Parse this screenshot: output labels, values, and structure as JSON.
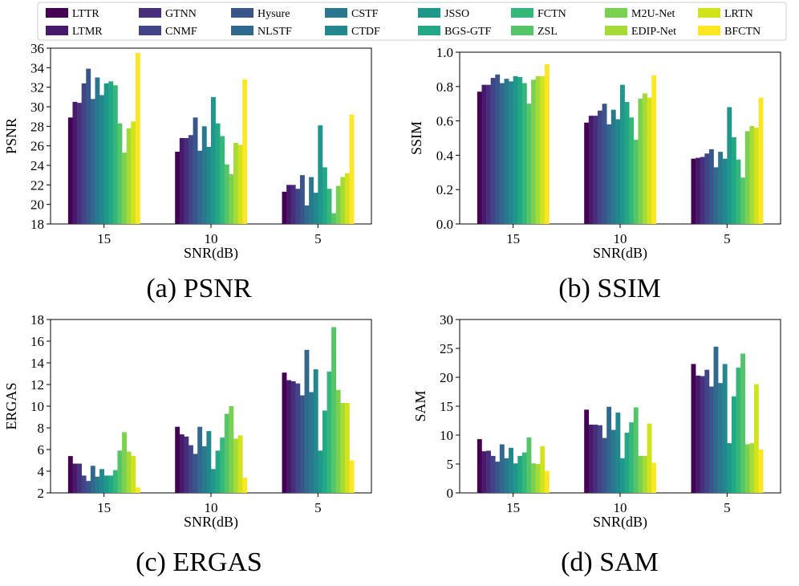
{
  "legend": {
    "entries": [
      "LTTR",
      "LTMR",
      "GTNN",
      "CNMF",
      "Hysure",
      "NLSTF",
      "CSTF",
      "CTDF",
      "JSSO",
      "BGS-GTF",
      "FCTN",
      "ZSL",
      "M2U-Net",
      "EDIP-Net",
      "LRTN",
      "BFCTN"
    ],
    "colors": [
      "#440154",
      "#481a6c",
      "#472f7d",
      "#414487",
      "#39568c",
      "#31688e",
      "#2a788e",
      "#23888e",
      "#1f988b",
      "#22a884",
      "#35b779",
      "#54c568",
      "#7ad151",
      "#a5db36",
      "#d2e21b",
      "#fde725"
    ]
  },
  "chart_data": [
    {
      "type": "bar",
      "caption": "(a) PSNR",
      "xlabel": "SNR(dB)",
      "ylabel": "PSNR",
      "categories": [
        "15",
        "10",
        "5"
      ],
      "ylim": [
        18,
        36
      ],
      "yticks": [
        "18",
        "20",
        "22",
        "24",
        "26",
        "28",
        "30",
        "32",
        "34",
        "36"
      ],
      "series": [
        {
          "name": "LTTR",
          "values": [
            28.9,
            25.4,
            21.3
          ]
        },
        {
          "name": "LTMR",
          "values": [
            30.5,
            26.8,
            22.0
          ]
        },
        {
          "name": "GTNN",
          "values": [
            30.4,
            26.8,
            22.0
          ]
        },
        {
          "name": "CNMF",
          "values": [
            32.4,
            27.1,
            21.6
          ]
        },
        {
          "name": "Hysure",
          "values": [
            33.9,
            28.9,
            23.0
          ]
        },
        {
          "name": "NLSTF",
          "values": [
            30.8,
            25.5,
            19.9
          ]
        },
        {
          "name": "CSTF",
          "values": [
            33.0,
            28.0,
            22.8
          ]
        },
        {
          "name": "CTDF",
          "values": [
            31.2,
            25.9,
            21.2
          ]
        },
        {
          "name": "JSSO",
          "values": [
            32.4,
            31.0,
            28.1
          ]
        },
        {
          "name": "BGS-GTF",
          "values": [
            32.6,
            28.3,
            23.8
          ]
        },
        {
          "name": "FCTN",
          "values": [
            32.2,
            27.0,
            21.6
          ]
        },
        {
          "name": "ZSL",
          "values": [
            28.3,
            24.1,
            19.1
          ]
        },
        {
          "name": "M2U-Net",
          "values": [
            25.3,
            23.1,
            21.9
          ]
        },
        {
          "name": "EDIP-Net",
          "values": [
            27.8,
            26.3,
            22.8
          ]
        },
        {
          "name": "LRTN",
          "values": [
            28.5,
            26.1,
            23.2
          ]
        },
        {
          "name": "BFCTN",
          "values": [
            35.5,
            32.8,
            29.2
          ]
        }
      ]
    },
    {
      "type": "bar",
      "caption": "(b) SSIM",
      "xlabel": "SNR(dB)",
      "ylabel": "SSIM",
      "categories": [
        "15",
        "10",
        "5"
      ],
      "ylim": [
        0,
        1
      ],
      "yticks": [
        "0.0",
        "0.2",
        "0.4",
        "0.6",
        "0.8",
        "1.0"
      ],
      "series": [
        {
          "name": "LTTR",
          "values": [
            0.77,
            0.59,
            0.38
          ]
        },
        {
          "name": "LTMR",
          "values": [
            0.81,
            0.63,
            0.385
          ]
        },
        {
          "name": "GTNN",
          "values": [
            0.81,
            0.63,
            0.39
          ]
        },
        {
          "name": "CNMF",
          "values": [
            0.85,
            0.66,
            0.41
          ]
        },
        {
          "name": "Hysure",
          "values": [
            0.87,
            0.7,
            0.435
          ]
        },
        {
          "name": "NLSTF",
          "values": [
            0.82,
            0.58,
            0.33
          ]
        },
        {
          "name": "CSTF",
          "values": [
            0.845,
            0.665,
            0.42
          ]
        },
        {
          "name": "CTDF",
          "values": [
            0.83,
            0.61,
            0.38
          ]
        },
        {
          "name": "JSSO",
          "values": [
            0.86,
            0.81,
            0.68
          ]
        },
        {
          "name": "BGS-GTF",
          "values": [
            0.855,
            0.71,
            0.505
          ]
        },
        {
          "name": "FCTN",
          "values": [
            0.82,
            0.62,
            0.375
          ]
        },
        {
          "name": "ZSL",
          "values": [
            0.7,
            0.49,
            0.27
          ]
        },
        {
          "name": "M2U-Net",
          "values": [
            0.84,
            0.73,
            0.54
          ]
        },
        {
          "name": "EDIP-Net",
          "values": [
            0.86,
            0.76,
            0.57
          ]
        },
        {
          "name": "LRTN",
          "values": [
            0.86,
            0.735,
            0.56
          ]
        },
        {
          "name": "BFCTN",
          "values": [
            0.93,
            0.865,
            0.735
          ]
        }
      ]
    },
    {
      "type": "bar",
      "caption": "(c) ERGAS",
      "xlabel": "SNR(dB)",
      "ylabel": "ERGAS",
      "categories": [
        "15",
        "10",
        "5"
      ],
      "ylim": [
        2,
        18
      ],
      "yticks": [
        "2",
        "4",
        "6",
        "8",
        "10",
        "12",
        "14",
        "16",
        "18"
      ],
      "series": [
        {
          "name": "LTTR",
          "values": [
            5.4,
            8.1,
            13.1
          ]
        },
        {
          "name": "LTMR",
          "values": [
            4.7,
            7.4,
            12.4
          ]
        },
        {
          "name": "GTNN",
          "values": [
            4.7,
            7.2,
            12.3
          ]
        },
        {
          "name": "CNMF",
          "values": [
            3.6,
            6.4,
            12.1
          ]
        },
        {
          "name": "Hysure",
          "values": [
            3.1,
            5.6,
            11.0
          ]
        },
        {
          "name": "NLSTF",
          "values": [
            4.5,
            8.1,
            15.2
          ]
        },
        {
          "name": "CSTF",
          "values": [
            3.5,
            6.3,
            11.3
          ]
        },
        {
          "name": "CTDF",
          "values": [
            4.2,
            7.7,
            13.4
          ]
        },
        {
          "name": "JSSO",
          "values": [
            3.6,
            4.2,
            5.9
          ]
        },
        {
          "name": "BGS-GTF",
          "values": [
            3.6,
            5.9,
            9.6
          ]
        },
        {
          "name": "FCTN",
          "values": [
            4.1,
            7.1,
            13.2
          ]
        },
        {
          "name": "ZSL",
          "values": [
            5.9,
            9.3,
            17.3
          ]
        },
        {
          "name": "M2U-Net",
          "values": [
            7.6,
            10.0,
            11.5
          ]
        },
        {
          "name": "EDIP-Net",
          "values": [
            5.8,
            7.0,
            10.3
          ]
        },
        {
          "name": "LRTN",
          "values": [
            5.4,
            7.3,
            10.3
          ]
        },
        {
          "name": "BFCTN",
          "values": [
            2.5,
            3.4,
            5.0
          ]
        }
      ]
    },
    {
      "type": "bar",
      "caption": "(d) SAM",
      "xlabel": "SNR(dB)",
      "ylabel": "SAM",
      "categories": [
        "15",
        "10",
        "5"
      ],
      "ylim": [
        0,
        30
      ],
      "yticks": [
        "0",
        "5",
        "10",
        "15",
        "20",
        "25",
        "30"
      ],
      "series": [
        {
          "name": "LTTR",
          "values": [
            9.3,
            14.4,
            22.3
          ]
        },
        {
          "name": "LTMR",
          "values": [
            7.2,
            11.8,
            20.3
          ]
        },
        {
          "name": "GTNN",
          "values": [
            7.3,
            11.8,
            20.2
          ]
        },
        {
          "name": "CNMF",
          "values": [
            6.4,
            11.7,
            21.3
          ]
        },
        {
          "name": "Hysure",
          "values": [
            5.4,
            9.5,
            18.4
          ]
        },
        {
          "name": "NLSTF",
          "values": [
            8.4,
            14.9,
            25.3
          ]
        },
        {
          "name": "CSTF",
          "values": [
            6.0,
            10.9,
            19.0
          ]
        },
        {
          "name": "CTDF",
          "values": [
            7.8,
            13.9,
            22.3
          ]
        },
        {
          "name": "JSSO",
          "values": [
            5.1,
            6.0,
            8.6
          ]
        },
        {
          "name": "BGS-GTF",
          "values": [
            6.4,
            10.4,
            16.7
          ]
        },
        {
          "name": "FCTN",
          "values": [
            7.0,
            12.2,
            21.7
          ]
        },
        {
          "name": "ZSL",
          "values": [
            9.6,
            14.8,
            24.1
          ]
        },
        {
          "name": "M2U-Net",
          "values": [
            5.1,
            6.4,
            8.4
          ]
        },
        {
          "name": "EDIP-Net",
          "values": [
            5.0,
            6.4,
            8.6
          ]
        },
        {
          "name": "LRTN",
          "values": [
            8.1,
            12.0,
            18.8
          ]
        },
        {
          "name": "BFCTN",
          "values": [
            3.8,
            5.2,
            7.5
          ]
        }
      ]
    }
  ]
}
